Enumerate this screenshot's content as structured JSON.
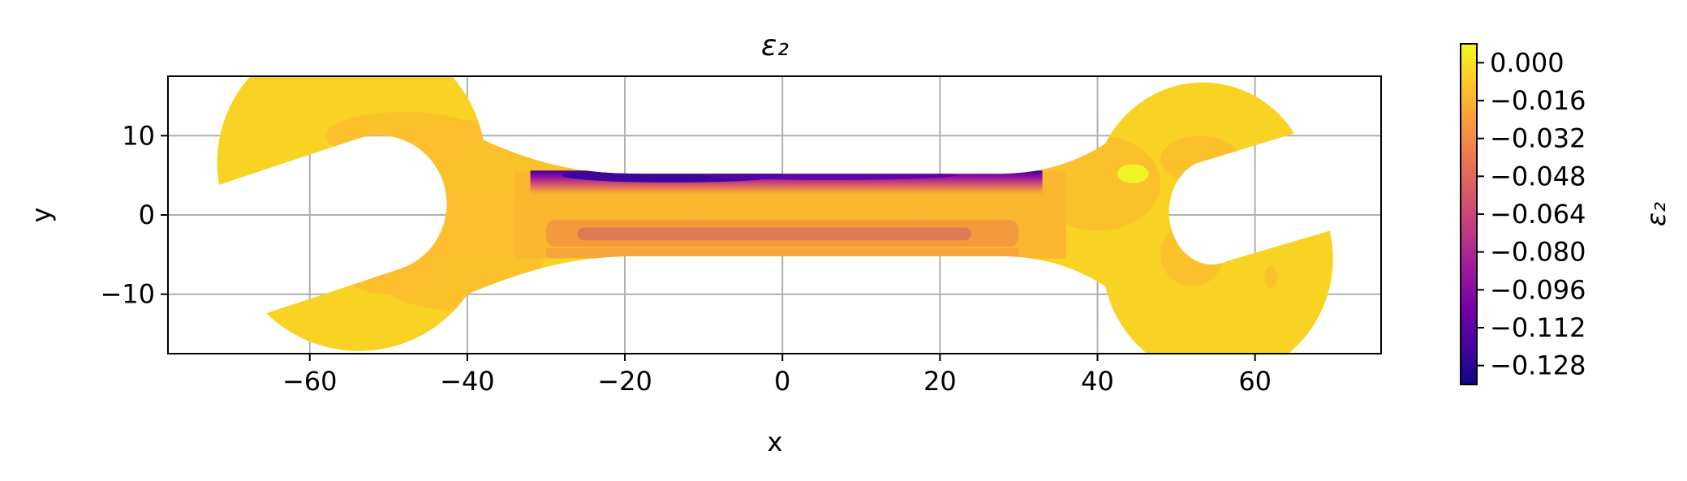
{
  "chart_data": {
    "type": "heatmap",
    "title": "ε₂",
    "xlabel": "x",
    "ylabel": "y",
    "xlim": [
      -78,
      76
    ],
    "ylim": [
      -17.5,
      17.5
    ],
    "x_ticks": [
      -60,
      -40,
      -20,
      0,
      20,
      40,
      60
    ],
    "x_tick_labels": [
      "−60",
      "−40",
      "−20",
      "0",
      "20",
      "40",
      "60"
    ],
    "y_ticks": [
      -10,
      0,
      10
    ],
    "y_tick_labels": [
      "−10",
      "0",
      "10"
    ],
    "grid": true,
    "colormap": "plasma",
    "colorbar": {
      "label": "ε₂",
      "range": [
        -0.136,
        0.008
      ],
      "ticks": [
        0.0,
        -0.016,
        -0.032,
        -0.048,
        -0.064,
        -0.08,
        -0.096,
        -0.112,
        -0.128
      ],
      "tick_labels": [
        "0.000",
        "−0.016",
        "−0.032",
        "−0.048",
        "−0.064",
        "−0.080",
        "−0.096",
        "−0.112",
        "−0.128"
      ],
      "placement": "right"
    },
    "field_description_values": {
      "background_level": -0.004,
      "shank_top_edge_min": -0.128,
      "shank_center_band": -0.032,
      "neck_regions": -0.024
    }
  },
  "colors": {
    "grid": "#b0b0b0",
    "axes": "#000000",
    "level_high": "#f9d524",
    "level_mid": "#f39a3e",
    "level_low": "#b02c8f",
    "level_min": "#3e049c"
  }
}
